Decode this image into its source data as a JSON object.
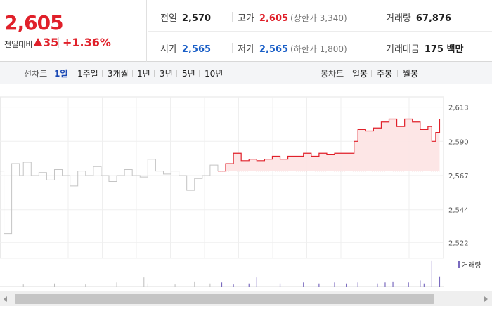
{
  "quote": {
    "price": "2,605",
    "change_label": "전일대비",
    "change_value": "35",
    "change_pct": "+1.36%",
    "prev_close": {
      "label": "전일",
      "value": "2,570"
    },
    "high": {
      "label": "고가",
      "value": "2,605",
      "note": "(상한가 3,340)"
    },
    "volume": {
      "label": "거래량",
      "value": "67,876"
    },
    "open": {
      "label": "시가",
      "value": "2,565"
    },
    "low": {
      "label": "저가",
      "value": "2,565",
      "note": "(하한가 1,800)"
    },
    "amount": {
      "label": "거래대금",
      "value": "175 백만"
    }
  },
  "tabs": {
    "line_label": "선차트",
    "line_periods": [
      "1일",
      "1주일",
      "3개월",
      "1년",
      "3년",
      "5년",
      "10년"
    ],
    "active_period": "1일",
    "candle_label": "봉차트",
    "candle_periods": [
      "일봉",
      "주봉",
      "월봉"
    ]
  },
  "colors": {
    "up": "#e0202a",
    "down": "#1a5fc7",
    "prev_line": "#c4c4c4",
    "fill": "#fde3e3",
    "volume": "#7a6bbf",
    "volume_prev": "#bdbdbd"
  },
  "chart_data": {
    "type": "line",
    "ylim": [
      2516,
      2618
    ],
    "y_ticks": [
      "2,613",
      "2,590",
      "2,567",
      "2,544",
      "2,522"
    ],
    "y_tick_values": [
      2613,
      2590,
      2567,
      2544,
      2522
    ],
    "baseline": 2570,
    "volume_legend": "거래량",
    "grid": true,
    "previous_session": [
      [
        0,
        2570
      ],
      [
        1,
        2528
      ],
      [
        3,
        2575
      ],
      [
        5,
        2567
      ],
      [
        6,
        2576
      ],
      [
        8,
        2567
      ],
      [
        10,
        2569
      ],
      [
        12,
        2564
      ],
      [
        14,
        2571
      ],
      [
        16,
        2567
      ],
      [
        18,
        2560
      ],
      [
        20,
        2570
      ],
      [
        22,
        2567
      ],
      [
        24,
        2573
      ],
      [
        26,
        2567
      ],
      [
        28,
        2563
      ],
      [
        30,
        2567
      ],
      [
        32,
        2571
      ],
      [
        34,
        2567
      ],
      [
        36,
        2566
      ],
      [
        38,
        2578
      ],
      [
        40,
        2570
      ],
      [
        42,
        2568
      ],
      [
        44,
        2570
      ],
      [
        46,
        2567
      ],
      [
        48,
        2557
      ],
      [
        50,
        2565
      ],
      [
        52,
        2567
      ],
      [
        54,
        2574
      ],
      [
        56,
        2570
      ]
    ],
    "today": [
      [
        56,
        2570
      ],
      [
        58,
        2575
      ],
      [
        60,
        2582
      ],
      [
        62,
        2577
      ],
      [
        64,
        2578
      ],
      [
        66,
        2577
      ],
      [
        68,
        2578
      ],
      [
        70,
        2580
      ],
      [
        72,
        2578
      ],
      [
        74,
        2580
      ],
      [
        76,
        2580
      ],
      [
        78,
        2582
      ],
      [
        80,
        2580
      ],
      [
        82,
        2582
      ],
      [
        84,
        2581
      ],
      [
        86,
        2582
      ],
      [
        88,
        2582
      ],
      [
        90,
        2582
      ],
      [
        91,
        2590
      ],
      [
        92,
        2598
      ],
      [
        94,
        2597
      ],
      [
        96,
        2599
      ],
      [
        98,
        2603
      ],
      [
        100,
        2605
      ],
      [
        102,
        2600
      ],
      [
        104,
        2605
      ],
      [
        106,
        2603
      ],
      [
        108,
        2598
      ],
      [
        110,
        2600
      ],
      [
        111,
        2590
      ],
      [
        112,
        2596
      ],
      [
        113,
        2605
      ]
    ],
    "volume_previous": [
      [
        6,
        2
      ],
      [
        14,
        3
      ],
      [
        22,
        2
      ],
      [
        30,
        4
      ],
      [
        37,
        9
      ],
      [
        38,
        3
      ],
      [
        45,
        2
      ],
      [
        50,
        5
      ],
      [
        54,
        3
      ]
    ],
    "volume_today": [
      [
        57,
        4
      ],
      [
        60,
        2
      ],
      [
        64,
        3
      ],
      [
        66,
        9
      ],
      [
        72,
        3
      ],
      [
        78,
        4
      ],
      [
        82,
        3
      ],
      [
        86,
        4
      ],
      [
        89,
        3
      ],
      [
        92,
        4
      ],
      [
        97,
        3
      ],
      [
        99,
        4
      ],
      [
        101,
        5
      ],
      [
        105,
        4
      ],
      [
        108,
        6
      ],
      [
        109,
        3
      ],
      [
        111,
        26
      ],
      [
        113,
        10
      ]
    ]
  }
}
